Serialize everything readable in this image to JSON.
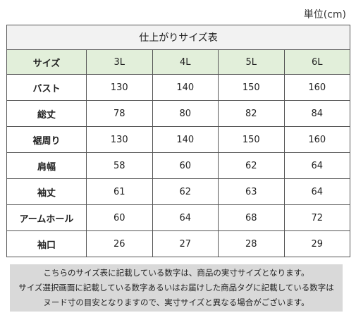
{
  "unit_label": "単位(cm)",
  "table": {
    "title": "仕上がりサイズ表",
    "header": {
      "label": "サイズ",
      "sizes": [
        "3L",
        "4L",
        "5L",
        "6L"
      ]
    },
    "rows": [
      {
        "label": "バスト",
        "values": [
          "130",
          "140",
          "150",
          "160"
        ]
      },
      {
        "label": "総丈",
        "values": [
          "78",
          "80",
          "82",
          "84"
        ]
      },
      {
        "label": "裾周り",
        "values": [
          "130",
          "140",
          "150",
          "160"
        ]
      },
      {
        "label": "肩幅",
        "values": [
          "58",
          "60",
          "62",
          "64"
        ]
      },
      {
        "label": "袖丈",
        "values": [
          "61",
          "62",
          "63",
          "64"
        ]
      },
      {
        "label": "アームホール",
        "values": [
          "60",
          "64",
          "68",
          "72"
        ]
      },
      {
        "label": "袖口",
        "values": [
          "26",
          "27",
          "28",
          "29"
        ]
      }
    ]
  },
  "note": {
    "lines": [
      "こちらのサイズ表に記載している数字は、商品の実寸サイズとなります。",
      "サイズ選択画面に記載している数字あるいはお届けした商品タグに記載している数字は",
      "ヌード寸の目安となりますので、実寸サイズと異なる場合がございます。"
    ]
  },
  "colors": {
    "header_bg": "#e2efda",
    "title_bg": "#f2f2f2",
    "note_bg": "#d9d9d9"
  }
}
